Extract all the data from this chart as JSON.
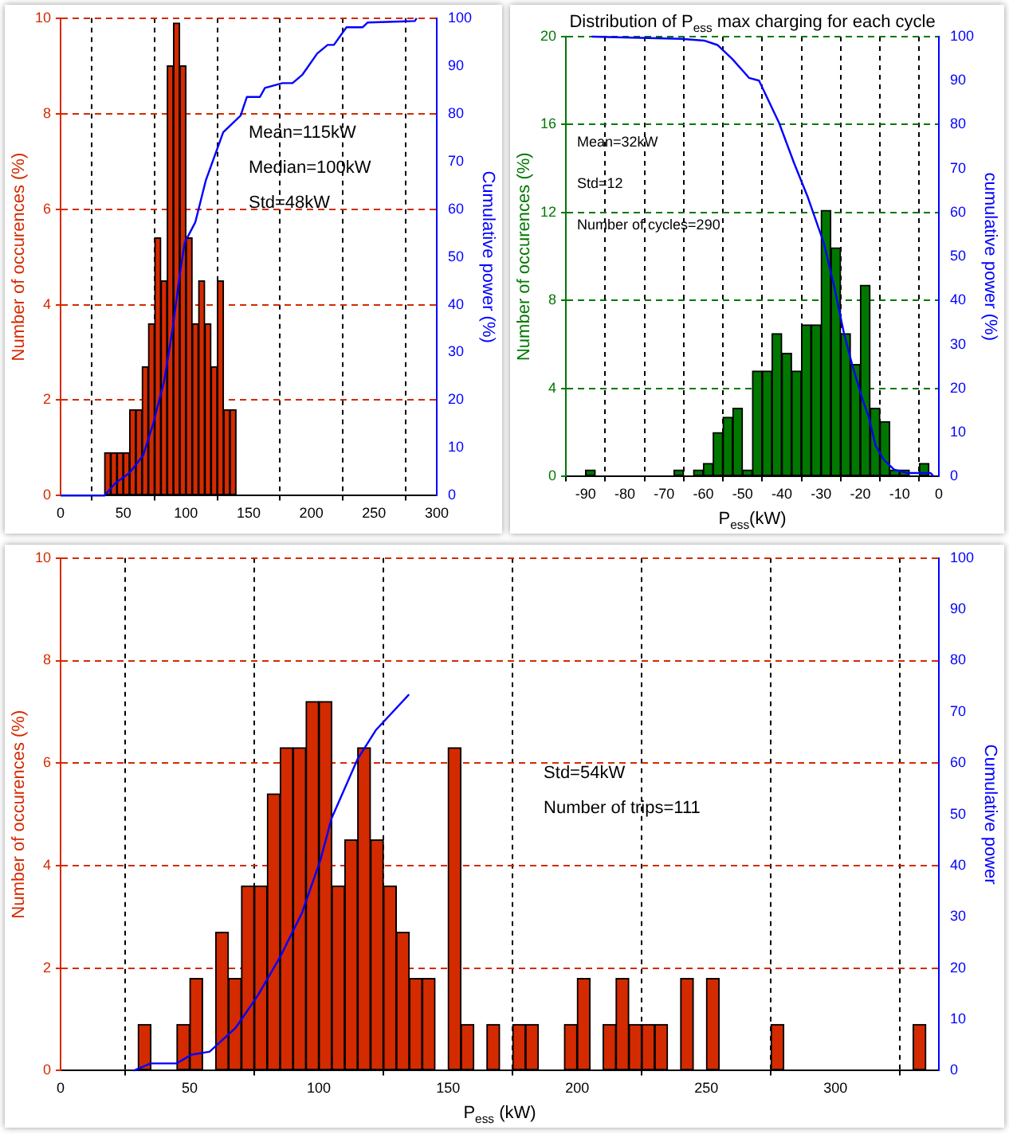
{
  "chart_data": [
    {
      "type": "histogram",
      "ylabel": "Number of occurences (%)",
      "y2label": "Cumulative power (%)",
      "annotations": [
        "Mean=115kW",
        "Median=100kW",
        "Std=48kW"
      ],
      "grid": true,
      "bins": [
        35,
        40,
        45,
        50,
        55,
        60,
        65,
        70,
        75,
        80,
        85,
        90,
        95,
        100,
        105,
        110,
        115,
        120,
        125,
        130,
        135,
        140
      ],
      "series": [
        {
          "type": "histogram",
          "color": "#d42a00",
          "values": [
            0.9,
            0.9,
            0.9,
            0.9,
            1.8,
            1.8,
            2.7,
            3.6,
            5.4,
            4.5,
            9.0,
            9.9,
            9.0,
            5.4,
            3.6,
            4.5,
            3.6,
            2.7,
            4.5,
            1.8,
            1.8
          ]
        },
        {
          "type": "line",
          "axis": "y2",
          "color": "#0000ff",
          "x": [
            0,
            35,
            43.6,
            54.7,
            65.8,
            74,
            82.5,
            89.4,
            95,
            99,
            107.5,
            115.8,
            129.7,
            143.6,
            148.6,
            159,
            163,
            177,
            185,
            193,
            204.7,
            213,
            218,
            228,
            241,
            245,
            282.5,
            284
          ],
          "values": [
            0,
            0,
            2.6,
            4.7,
            8.4,
            15.2,
            23.9,
            35,
            46.2,
            53,
            57.3,
            66,
            76.1,
            79.6,
            83.5,
            83.5,
            85.4,
            86.4,
            86.4,
            88.2,
            92.6,
            94.4,
            94.4,
            98.1,
            98.1,
            99.1,
            99.4,
            100
          ]
        }
      ],
      "xlim": [
        0,
        300
      ],
      "xticks": [
        0,
        50,
        100,
        150,
        200,
        250,
        300
      ],
      "ylim": [
        0,
        10
      ],
      "yticks": [
        0,
        2,
        4,
        6,
        8,
        10
      ],
      "y2lim": [
        0,
        100
      ],
      "y2ticks": [
        0,
        10,
        20,
        30,
        40,
        50,
        60,
        70,
        80,
        90,
        100
      ]
    },
    {
      "type": "histogram",
      "title": "Distribution of P$_{ess}$ max charging for each cycle",
      "xlabel": "P$_{ess}$(kW)",
      "ylabel": "Number of occurences (%)",
      "y2label": "cumulative power (%)",
      "annotations": [
        "Mean=32kW",
        "Std=12",
        "Number of cycles=290"
      ],
      "grid": true,
      "bins": [
        -90,
        -87.5,
        -85,
        -82.5,
        -80,
        -77.5,
        -75,
        -72.5,
        -70,
        -67.5,
        -65,
        -62.5,
        -60,
        -57.5,
        -55,
        -52.5,
        -50,
        -47.5,
        -45,
        -42.5,
        -40,
        -37.5,
        -35,
        -32.5,
        -30,
        -27.5,
        -25,
        -22.5,
        -20,
        -17.5,
        -15,
        -12.5,
        -10,
        -7.5,
        -5,
        -2.5
      ],
      "series": [
        {
          "type": "histogram",
          "color": "#007800",
          "values": [
            0.3,
            0,
            0,
            0,
            0,
            0,
            0,
            0,
            0,
            0.3,
            0,
            0.3,
            0.6,
            2.0,
            2.7,
            3.1,
            0.3,
            4.8,
            4.8,
            6.5,
            5.6,
            4.8,
            6.9,
            6.9,
            12.1,
            10.4,
            6.5,
            5.1,
            8.7,
            3.1,
            2.5,
            0.3,
            0.3,
            0,
            0.6
          ]
        },
        {
          "type": "line",
          "axis": "y2",
          "color": "#0000ff",
          "x": [
            -88.4,
            -65.7,
            -59.8,
            -56.4,
            -52.6,
            -48.3,
            -45.8,
            -40.7,
            -36.9,
            -33.5,
            -29.3,
            -26.7,
            -24.2,
            -22.0,
            -19.5,
            -17.8,
            -16.1,
            -14.0,
            -11.4,
            -8.1,
            -2.1,
            -1.3
          ],
          "values": [
            100,
            99.5,
            99.1,
            98.1,
            94.9,
            90.6,
            90,
            80.4,
            71.3,
            63.8,
            53.1,
            43.4,
            32.7,
            25.2,
            17.7,
            13.4,
            7.0,
            3.8,
            1.6,
            0.8,
            0.8,
            0
          ]
        }
      ],
      "xlim": [
        -95,
        0
      ],
      "xticks": [
        -90,
        -80,
        -70,
        -60,
        -50,
        -40,
        -30,
        -20,
        -10,
        0
      ],
      "ylim": [
        0,
        20
      ],
      "yticks": [
        0,
        4,
        8,
        12,
        16,
        20
      ],
      "y2lim": [
        0,
        100
      ],
      "y2ticks": [
        0,
        10,
        20,
        30,
        40,
        50,
        60,
        70,
        80,
        90,
        100
      ]
    },
    {
      "type": "histogram",
      "xlabel": "P$_{ess}$ (kW)",
      "ylabel": "Number of occurences (%)",
      "y2label": "Cumulative power",
      "annotations": [
        "Std=54kW",
        "Number of trips=111"
      ],
      "grid": true,
      "bins": [
        30,
        35,
        40,
        45,
        50,
        55,
        60,
        65,
        70,
        75,
        80,
        85,
        90,
        95,
        100,
        105,
        110,
        115,
        120,
        125,
        130,
        135,
        140,
        145,
        150,
        155,
        160,
        165,
        170,
        175,
        180,
        185,
        190,
        195,
        200,
        205,
        210,
        215,
        220,
        225,
        230,
        235,
        240,
        245,
        250,
        255,
        260,
        265,
        270,
        275,
        280,
        285,
        290,
        295,
        300,
        305,
        310,
        315,
        320,
        325,
        330,
        335
      ],
      "series": [
        {
          "type": "histogram",
          "color": "#d42a00",
          "values": [
            0.9,
            0,
            0,
            0.9,
            1.8,
            0,
            2.7,
            1.8,
            3.6,
            3.6,
            5.4,
            6.3,
            6.3,
            7.2,
            7.2,
            3.6,
            4.5,
            6.3,
            4.5,
            3.6,
            2.7,
            1.8,
            1.8,
            0,
            6.3,
            0.9,
            0,
            0.9,
            0,
            0.9,
            0.9,
            0,
            0,
            0.9,
            1.8,
            0,
            0.9,
            1.8,
            0.9,
            0.9,
            0.9,
            0,
            1.8,
            0,
            1.8,
            0,
            0,
            0,
            0,
            0.9,
            0,
            0,
            0,
            0,
            0,
            0,
            0,
            0,
            0,
            0,
            0.9
          ]
        },
        {
          "type": "line",
          "axis": "y2",
          "color": "#0000ff",
          "x": [
            28.3,
            34.9,
            44.9,
            50.6,
            57.7,
            67.7,
            76.3,
            84.9,
            93.4,
            100.6,
            104.9,
            114.9,
            122,
            134.9
          ],
          "values": [
            0,
            1.4,
            1.4,
            3.1,
            3.7,
            8.3,
            14.6,
            22.1,
            30.7,
            41.1,
            49.2,
            60.7,
            66.4,
            73.4
          ]
        }
      ],
      "xlim": [
        0,
        340
      ],
      "xticks": [
        0,
        50,
        100,
        150,
        200,
        250,
        300
      ],
      "ylim": [
        0,
        10
      ],
      "yticks": [
        0,
        2,
        4,
        6,
        8,
        10
      ],
      "y2lim": [
        0,
        100
      ],
      "y2ticks": [
        0,
        10,
        20,
        30,
        40,
        50,
        60,
        70,
        80,
        90,
        100
      ]
    }
  ]
}
